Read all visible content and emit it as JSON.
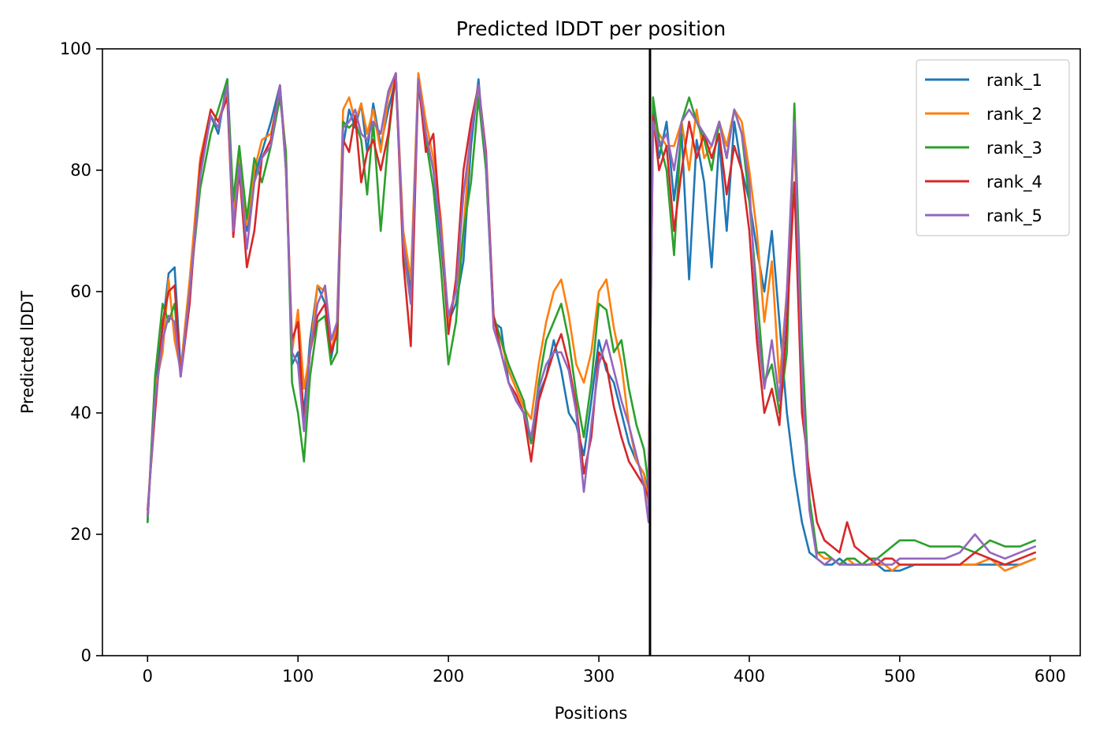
{
  "chart_data": {
    "type": "line",
    "title": "Predicted lDDT per position",
    "xlabel": "Positions",
    "ylabel": "Predicted lDDT",
    "xlim": [
      -30,
      620
    ],
    "ylim": [
      0,
      100
    ],
    "xticks": [
      0,
      100,
      200,
      300,
      400,
      500,
      600
    ],
    "yticks": [
      0,
      20,
      40,
      60,
      80,
      100
    ],
    "grid": false,
    "legend_position": "top-right",
    "vline": {
      "x": 334,
      "color": "#000000"
    },
    "series": [
      {
        "name": "rank_1",
        "color": "#1f77b4",
        "x": [
          0,
          5,
          10,
          14,
          18,
          22,
          28,
          35,
          42,
          47,
          53,
          57,
          61,
          66,
          71,
          76,
          82,
          88,
          92,
          96,
          100,
          104,
          108,
          113,
          118,
          122,
          126,
          130,
          134,
          138,
          142,
          146,
          150,
          155,
          160,
          165,
          170,
          175,
          180,
          185,
          190,
          195,
          200,
          205,
          210,
          215,
          220,
          225,
          230,
          235,
          240,
          245,
          250,
          255,
          260,
          265,
          270,
          275,
          280,
          285,
          290,
          295,
          300,
          305,
          310,
          315,
          320,
          325,
          330,
          333,
          336,
          340,
          345,
          350,
          355,
          360,
          365,
          370,
          375,
          380,
          385,
          390,
          395,
          400,
          405,
          410,
          415,
          420,
          425,
          430,
          435,
          440,
          445,
          450,
          455,
          460,
          465,
          470,
          475,
          480,
          485,
          490,
          495,
          500,
          510,
          520,
          530,
          540,
          550,
          560,
          570,
          580,
          590
        ],
        "values": [
          22,
          45,
          54,
          63,
          64,
          47,
          60,
          80,
          89,
          86,
          95,
          73,
          83,
          70,
          79,
          83,
          88,
          94,
          82,
          48,
          50,
          40,
          52,
          61,
          58,
          49,
          54,
          84,
          90,
          87,
          91,
          83,
          91,
          84,
          90,
          95,
          68,
          60,
          95,
          86,
          80,
          68,
          55,
          58,
          65,
          84,
          95,
          80,
          55,
          54,
          45,
          42,
          40,
          35,
          43,
          46,
          52,
          47,
          40,
          38,
          33,
          42,
          52,
          47,
          45,
          40,
          35,
          32,
          30,
          27,
          90,
          82,
          88,
          75,
          86,
          62,
          85,
          78,
          64,
          85,
          70,
          88,
          80,
          75,
          67,
          60,
          70,
          55,
          40,
          30,
          22,
          17,
          16,
          15,
          15,
          16,
          15,
          15,
          15,
          15,
          15,
          14,
          14,
          14,
          15,
          15,
          15,
          15,
          15,
          15,
          15,
          15,
          16
        ]
      },
      {
        "name": "rank_2",
        "color": "#ff7f0e",
        "x": [
          0,
          5,
          10,
          14,
          18,
          22,
          28,
          35,
          42,
          47,
          53,
          57,
          61,
          66,
          71,
          76,
          82,
          88,
          92,
          96,
          100,
          104,
          108,
          113,
          118,
          122,
          126,
          130,
          134,
          138,
          142,
          146,
          150,
          155,
          160,
          165,
          170,
          175,
          180,
          185,
          190,
          195,
          200,
          205,
          210,
          215,
          220,
          225,
          230,
          235,
          240,
          245,
          250,
          255,
          260,
          265,
          270,
          275,
          280,
          285,
          290,
          295,
          300,
          305,
          310,
          315,
          320,
          325,
          330,
          333,
          336,
          340,
          345,
          350,
          355,
          360,
          365,
          370,
          375,
          380,
          385,
          390,
          395,
          400,
          405,
          410,
          415,
          420,
          425,
          430,
          435,
          440,
          445,
          450,
          455,
          460,
          465,
          470,
          475,
          480,
          485,
          490,
          495,
          500,
          510,
          520,
          530,
          540,
          550,
          560,
          570,
          580,
          590
        ],
        "values": [
          23,
          44,
          50,
          62,
          52,
          47,
          62,
          82,
          90,
          88,
          93,
          72,
          82,
          71,
          80,
          85,
          86,
          93,
          83,
          50,
          57,
          44,
          50,
          61,
          60,
          50,
          55,
          90,
          92,
          88,
          91,
          86,
          90,
          83,
          92,
          96,
          70,
          62,
          96,
          88,
          82,
          72,
          55,
          60,
          70,
          87,
          93,
          82,
          56,
          52,
          47,
          44,
          41,
          39,
          48,
          55,
          60,
          62,
          56,
          48,
          45,
          50,
          60,
          62,
          54,
          48,
          38,
          32,
          30,
          25,
          88,
          86,
          84,
          84,
          88,
          80,
          90,
          82,
          84,
          88,
          84,
          90,
          88,
          80,
          70,
          55,
          65,
          45,
          60,
          86,
          45,
          25,
          17,
          16,
          16,
          15,
          16,
          15,
          15,
          15,
          15,
          15,
          14,
          15,
          15,
          15,
          15,
          15,
          15,
          16,
          14,
          15,
          16
        ]
      },
      {
        "name": "rank_3",
        "color": "#2ca02c",
        "x": [
          0,
          5,
          10,
          14,
          18,
          22,
          28,
          35,
          42,
          47,
          53,
          57,
          61,
          66,
          71,
          76,
          82,
          88,
          92,
          96,
          100,
          104,
          108,
          113,
          118,
          122,
          126,
          130,
          134,
          138,
          142,
          146,
          150,
          155,
          160,
          165,
          170,
          175,
          180,
          185,
          190,
          195,
          200,
          205,
          210,
          215,
          220,
          225,
          230,
          235,
          240,
          245,
          250,
          255,
          260,
          265,
          270,
          275,
          280,
          285,
          290,
          295,
          300,
          305,
          310,
          315,
          320,
          325,
          330,
          333,
          336,
          340,
          345,
          350,
          355,
          360,
          365,
          370,
          375,
          380,
          385,
          390,
          395,
          400,
          405,
          410,
          415,
          420,
          425,
          430,
          435,
          440,
          445,
          450,
          455,
          460,
          465,
          470,
          475,
          480,
          485,
          490,
          495,
          500,
          510,
          520,
          530,
          540,
          550,
          560,
          570,
          580,
          590
        ],
        "values": [
          22,
          46,
          58,
          55,
          58,
          46,
          60,
          77,
          86,
          90,
          95,
          75,
          84,
          72,
          82,
          78,
          84,
          92,
          83,
          45,
          40,
          32,
          46,
          55,
          56,
          48,
          50,
          88,
          87,
          88,
          85,
          76,
          88,
          70,
          85,
          96,
          67,
          58,
          94,
          85,
          77,
          64,
          48,
          55,
          70,
          78,
          92,
          80,
          56,
          52,
          48,
          45,
          42,
          35,
          45,
          52,
          55,
          58,
          52,
          43,
          36,
          45,
          58,
          57,
          50,
          52,
          44,
          38,
          34,
          28,
          92,
          85,
          80,
          66,
          88,
          92,
          88,
          85,
          80,
          88,
          82,
          90,
          86,
          75,
          60,
          45,
          48,
          40,
          50,
          91,
          52,
          26,
          17,
          17,
          16,
          15,
          16,
          16,
          15,
          16,
          16,
          17,
          18,
          19,
          19,
          18,
          18,
          18,
          17,
          19,
          18,
          18,
          19
        ]
      },
      {
        "name": "rank_4",
        "color": "#d62728",
        "x": [
          0,
          5,
          10,
          14,
          18,
          22,
          28,
          35,
          42,
          47,
          53,
          57,
          61,
          66,
          71,
          76,
          82,
          88,
          92,
          96,
          100,
          104,
          108,
          113,
          118,
          122,
          126,
          130,
          134,
          138,
          142,
          146,
          150,
          155,
          160,
          165,
          170,
          175,
          180,
          185,
          190,
          195,
          200,
          205,
          210,
          215,
          220,
          225,
          230,
          235,
          240,
          245,
          250,
          255,
          260,
          265,
          270,
          275,
          280,
          285,
          290,
          295,
          300,
          305,
          310,
          315,
          320,
          325,
          330,
          333,
          336,
          340,
          345,
          350,
          355,
          360,
          365,
          370,
          375,
          380,
          385,
          390,
          395,
          400,
          405,
          410,
          415,
          420,
          425,
          430,
          435,
          440,
          445,
          450,
          455,
          460,
          465,
          470,
          475,
          480,
          485,
          490,
          495,
          500,
          510,
          520,
          530,
          540,
          550,
          560,
          570,
          580,
          590
        ],
        "values": [
          24,
          40,
          55,
          60,
          61,
          46,
          58,
          81,
          90,
          88,
          92,
          69,
          80,
          64,
          70,
          82,
          85,
          94,
          80,
          52,
          55,
          38,
          50,
          56,
          58,
          50,
          53,
          85,
          83,
          89,
          78,
          83,
          85,
          80,
          86,
          96,
          65,
          51,
          95,
          83,
          86,
          70,
          53,
          62,
          80,
          88,
          94,
          83,
          56,
          50,
          45,
          43,
          40,
          32,
          42,
          46,
          50,
          53,
          48,
          41,
          30,
          36,
          50,
          48,
          41,
          36,
          32,
          30,
          28,
          26,
          89,
          80,
          84,
          70,
          80,
          88,
          82,
          86,
          82,
          86,
          76,
          84,
          80,
          70,
          52,
          40,
          44,
          38,
          55,
          78,
          40,
          30,
          22,
          19,
          18,
          17,
          22,
          18,
          17,
          16,
          15,
          16,
          16,
          15,
          15,
          15,
          15,
          15,
          17,
          16,
          15,
          16,
          17
        ]
      },
      {
        "name": "rank_5",
        "color": "#9467bd",
        "x": [
          0,
          5,
          10,
          14,
          18,
          22,
          28,
          35,
          42,
          47,
          53,
          57,
          61,
          66,
          71,
          76,
          82,
          88,
          92,
          96,
          100,
          104,
          108,
          113,
          118,
          122,
          126,
          130,
          134,
          138,
          142,
          146,
          150,
          155,
          160,
          165,
          170,
          175,
          180,
          185,
          190,
          195,
          200,
          205,
          210,
          215,
          220,
          225,
          230,
          235,
          240,
          245,
          250,
          255,
          260,
          265,
          270,
          275,
          280,
          285,
          290,
          295,
          300,
          305,
          310,
          315,
          320,
          325,
          330,
          333,
          336,
          340,
          345,
          350,
          355,
          360,
          365,
          370,
          375,
          380,
          385,
          390,
          395,
          400,
          405,
          410,
          415,
          420,
          425,
          430,
          435,
          440,
          445,
          450,
          455,
          460,
          465,
          470,
          475,
          480,
          485,
          490,
          495,
          500,
          510,
          520,
          530,
          540,
          550,
          560,
          570,
          580,
          590
        ],
        "values": [
          23,
          42,
          52,
          56,
          55,
          46,
          60,
          79,
          89,
          87,
          94,
          70,
          81,
          67,
          78,
          82,
          84,
          94,
          80,
          50,
          48,
          37,
          50,
          58,
          61,
          52,
          55,
          87,
          88,
          90,
          86,
          85,
          88,
          86,
          93,
          96,
          68,
          58,
          95,
          86,
          80,
          70,
          56,
          60,
          76,
          86,
          94,
          82,
          54,
          50,
          45,
          42,
          40,
          36,
          44,
          48,
          50,
          50,
          47,
          40,
          27,
          38,
          48,
          52,
          47,
          42,
          38,
          33,
          28,
          22,
          88,
          84,
          86,
          80,
          88,
          90,
          88,
          86,
          84,
          88,
          82,
          90,
          86,
          78,
          55,
          44,
          52,
          42,
          60,
          88,
          46,
          24,
          16,
          15,
          16,
          15,
          15,
          15,
          15,
          15,
          16,
          15,
          15,
          16,
          16,
          16,
          16,
          17,
          20,
          17,
          16,
          17,
          18
        ]
      }
    ]
  }
}
